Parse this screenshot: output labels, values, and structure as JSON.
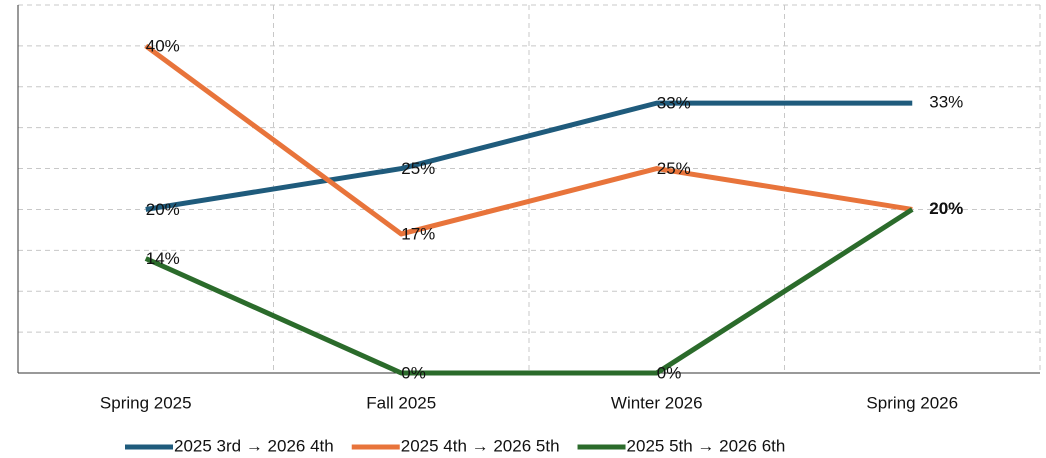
{
  "chart_data": {
    "type": "line",
    "categories": [
      "Spring 2025",
      "Fall 2025",
      "Winter 2026",
      "Spring 2026"
    ],
    "series": [
      {
        "name": "2025 3rd → 2026 4th",
        "color": "#1f5b7c",
        "values": [
          20,
          25,
          33,
          33
        ],
        "value_labels": [
          "20%",
          "25%",
          "33%",
          "33%"
        ]
      },
      {
        "name": "2025 4th → 2026 5th",
        "color": "#e8743b",
        "values": [
          40,
          17,
          25,
          20
        ],
        "value_labels": [
          "40%",
          "17%",
          "25%",
          "20%"
        ]
      },
      {
        "name": "2025 5th → 2026 6th",
        "color": "#2b6b2b",
        "values": [
          14,
          0,
          0,
          20
        ],
        "value_labels": [
          "14%",
          "0%",
          "0%",
          "20%"
        ]
      }
    ],
    "ylim": [
      0,
      45
    ],
    "yticks": [
      0,
      5,
      10,
      15,
      20,
      25,
      30,
      35,
      40,
      45
    ],
    "grid": true,
    "legend": "bottom"
  }
}
